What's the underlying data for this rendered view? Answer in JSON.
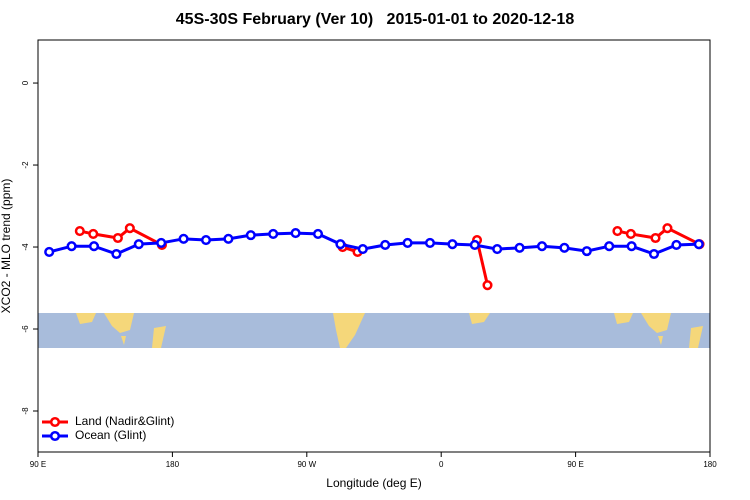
{
  "chart_data": {
    "type": "line",
    "title": "45S-30S February (Ver 10)   2015-01-01 to 2020-12-18",
    "xlabel": "Longitude (deg E)",
    "ylabel": "XCO2 - MLO trend (ppm)",
    "xlim": [
      90,
      540
    ],
    "xticks": [
      {
        "value": 90,
        "label": "90 E"
      },
      {
        "value": 180,
        "label": "180"
      },
      {
        "value": 270,
        "label": "90 W"
      },
      {
        "value": 360,
        "label": "0"
      },
      {
        "value": 450,
        "label": "90 E"
      },
      {
        "value": 540,
        "label": "180"
      }
    ],
    "ylim": [
      -9.0,
      1.05
    ],
    "yticks": [
      0,
      -2,
      -4,
      -6,
      -8
    ],
    "legend": "bottom-left",
    "series": [
      {
        "name": "Land (Nadir&Glint)",
        "color": "#ff0000",
        "x": [
          118,
          127,
          143.5,
          151.5,
          173,
          null,
          294,
          304,
          null,
          384,
          391,
          null,
          478,
          487,
          503.5,
          511.5,
          533
        ],
        "values": [
          -3.61,
          -3.68,
          -3.78,
          -3.54,
          -3.95,
          null,
          -4.0,
          -4.12,
          null,
          -3.83,
          -4.93,
          null,
          -3.61,
          -3.68,
          -3.78,
          -3.54,
          -3.93
        ]
      },
      {
        "name": "Ocean (Glint)",
        "color": "#0000ff",
        "x": [
          97.5,
          112.5,
          127.5,
          142.5,
          157.5,
          172.5,
          187.5,
          202.5,
          217.5,
          232.5,
          247.5,
          262.5,
          277.5,
          292.5,
          307.5,
          322.5,
          337.5,
          352.5,
          367.5,
          382.5,
          397.5,
          412.5,
          427.5,
          442.5,
          457.5,
          472.5,
          487.5,
          502.5,
          517.5,
          532.5
        ],
        "values": [
          -4.12,
          -3.98,
          -3.98,
          -4.17,
          -3.93,
          -3.9,
          -3.8,
          -3.83,
          -3.8,
          -3.71,
          -3.68,
          -3.66,
          -3.68,
          -3.93,
          -4.05,
          -3.95,
          -3.9,
          -3.9,
          -3.93,
          -3.95,
          -4.05,
          -4.02,
          -3.98,
          -4.02,
          -4.1,
          -3.98,
          -3.98,
          -4.17,
          -3.95,
          -3.93
        ]
      }
    ]
  }
}
